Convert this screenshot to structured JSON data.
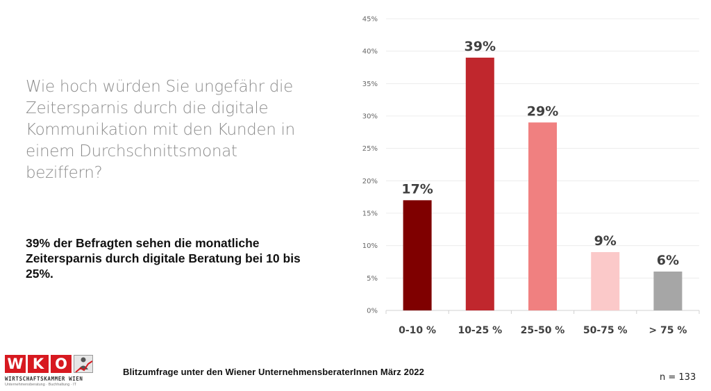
{
  "slide": {
    "question": "Wie hoch würden Sie ungefähr die Zeitersparnis durch die digitale Kommunikation mit den Kunden in einem Durchschnittsmonat beziffern?",
    "summary": "39% der Befragten sehen die monatliche Zeitersparnis durch digitale Beratung bei 10 bis 25%.",
    "footer": "Blitzumfrage unter den Wiener UnternehmensberaterInnen März 2022",
    "sample_size": "n = 133"
  },
  "logo": {
    "letters": [
      "W",
      "K",
      "O"
    ],
    "name": "WIRTSCHAFTSKAMMER WIEN",
    "subline": "Unternehmensberatung · Buchhaltung · IT",
    "color": "#d71920"
  },
  "chart_data": {
    "type": "bar",
    "title": "",
    "xlabel": "",
    "ylabel": "",
    "categories": [
      "0-10 %",
      "10-25 %",
      "25-50 %",
      "50-75 %",
      "> 75 %"
    ],
    "values": [
      17,
      39,
      29,
      9,
      6
    ],
    "value_labels": [
      "17%",
      "39%",
      "29%",
      "9%",
      "6%"
    ],
    "unit": "%",
    "colors": [
      "#7f0000",
      "#c0272d",
      "#f08080",
      "#fbc9c9",
      "#a6a6a6"
    ],
    "ylim": [
      0,
      45
    ],
    "yticks": [
      0,
      5,
      10,
      15,
      20,
      25,
      30,
      35,
      40,
      45
    ],
    "ytick_labels": [
      "0%",
      "5%",
      "10%",
      "15%",
      "20%",
      "25%",
      "30%",
      "35%",
      "40%",
      "45%"
    ],
    "grid": true,
    "legend": "none"
  }
}
